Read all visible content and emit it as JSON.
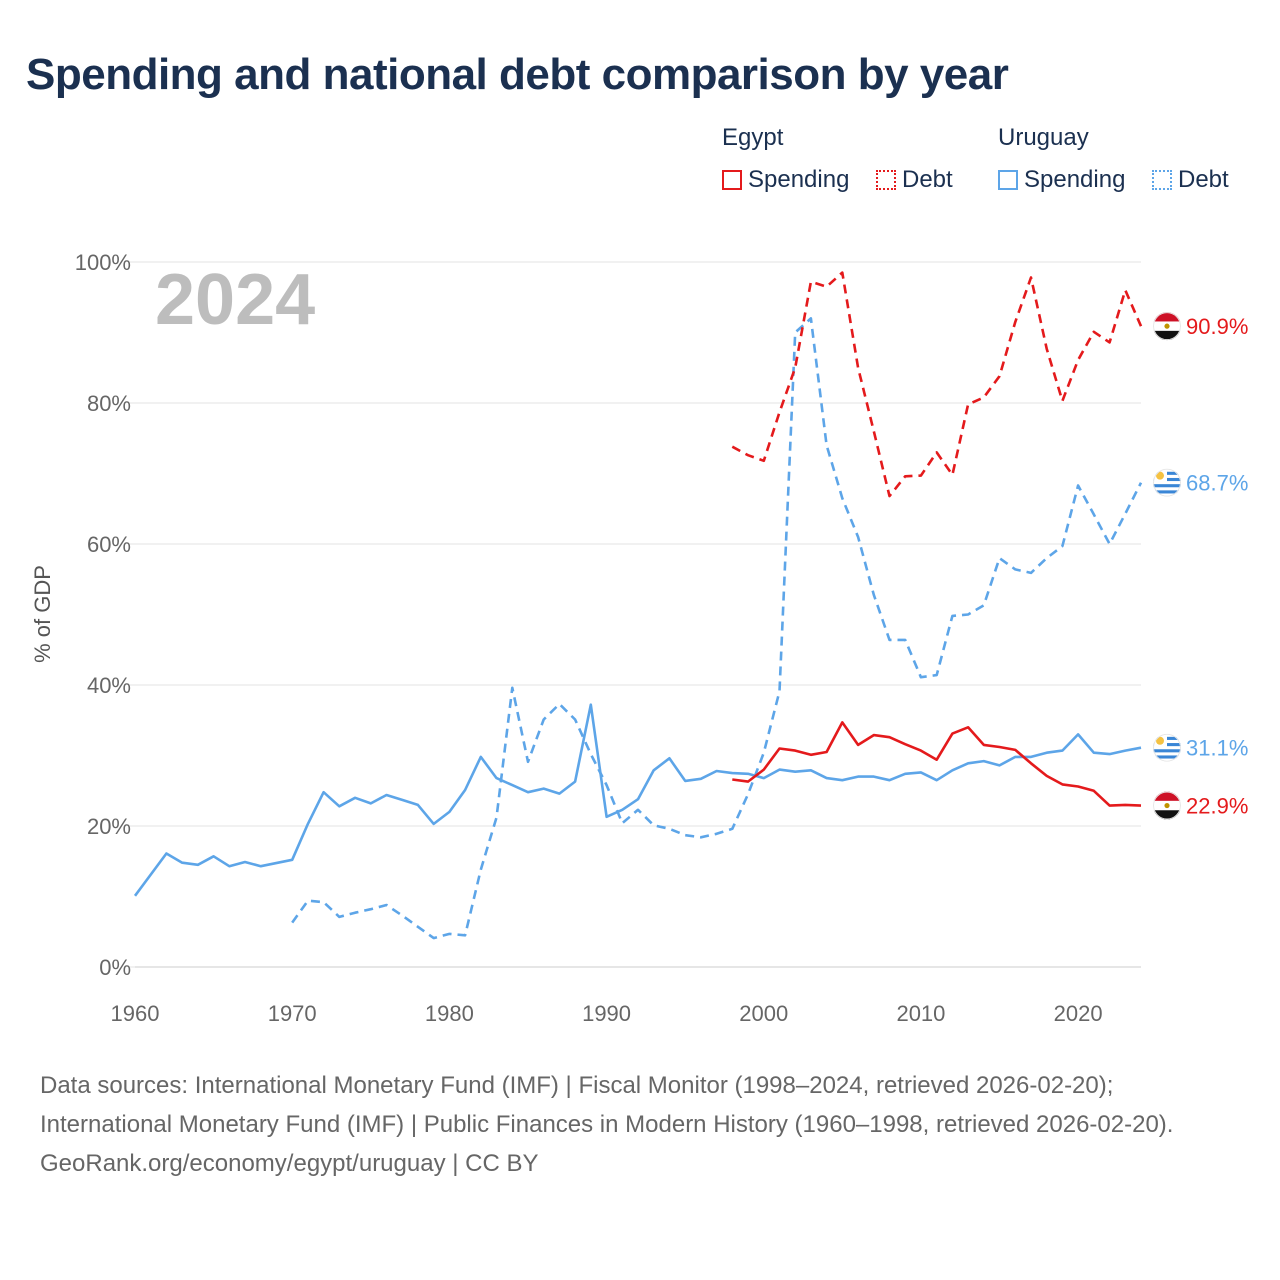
{
  "title": "Spending and national debt comparison by year",
  "legend": {
    "groups": [
      {
        "country": "Egypt",
        "color": "#e41a1c",
        "items": [
          {
            "label": "Spending",
            "style": "solid"
          },
          {
            "label": "Debt",
            "style": "dotted"
          }
        ]
      },
      {
        "country": "Uruguay",
        "color": "#5da5e8",
        "items": [
          {
            "label": "Spending",
            "style": "solid"
          },
          {
            "label": "Debt",
            "style": "dotted"
          }
        ]
      }
    ]
  },
  "footer": {
    "sources": "Data sources: International Monetary Fund (IMF) | Fiscal Monitor (1998–2024, retrieved 2026-02-20); International Monetary Fund (IMF) | Public Finances in Modern History (1960–1998, retrieved 2026-02-20).",
    "credit": "GeoRank.org/economy/egypt/uruguay | CC BY"
  },
  "chart_data": {
    "type": "line",
    "title": "Spending and national debt comparison by year",
    "year_label": "2024",
    "xlabel": "",
    "ylabel": "% of GDP",
    "xlim": [
      1960,
      2024
    ],
    "ylim": [
      0,
      100
    ],
    "x_ticks": [
      1960,
      1970,
      1980,
      1990,
      2000,
      2010,
      2020
    ],
    "y_ticks": [
      0,
      20,
      40,
      60,
      80,
      100
    ],
    "y_tick_labels": [
      "0%",
      "20%",
      "40%",
      "60%",
      "80%",
      "100%"
    ],
    "grid": true,
    "series": [
      {
        "name": "Uruguay Spending",
        "country": "Uruguay",
        "color": "#5da5e8",
        "dash": "solid",
        "end_label": "31.1%",
        "flag": "uruguay",
        "points": [
          [
            1960,
            10.1
          ],
          [
            1962,
            16.1
          ],
          [
            1963,
            14.8
          ],
          [
            1964,
            14.5
          ],
          [
            1965,
            15.7
          ],
          [
            1966,
            14.3
          ],
          [
            1967,
            14.9
          ],
          [
            1968,
            14.3
          ],
          [
            1970,
            15.2
          ],
          [
            1971,
            20.3
          ],
          [
            1972,
            24.8
          ],
          [
            1973,
            22.8
          ],
          [
            1974,
            24.0
          ],
          [
            1975,
            23.2
          ],
          [
            1976,
            24.4
          ],
          [
            1977,
            23.7
          ],
          [
            1978,
            23.0
          ],
          [
            1979,
            20.3
          ],
          [
            1980,
            22.0
          ],
          [
            1981,
            25.1
          ],
          [
            1982,
            29.8
          ],
          [
            1983,
            26.8
          ],
          [
            1984,
            25.8
          ],
          [
            1985,
            24.8
          ],
          [
            1986,
            25.3
          ],
          [
            1987,
            24.6
          ],
          [
            1988,
            26.3
          ],
          [
            1989,
            37.2
          ],
          [
            1990,
            21.3
          ],
          [
            1991,
            22.3
          ],
          [
            1992,
            23.8
          ],
          [
            1993,
            27.9
          ],
          [
            1994,
            29.6
          ],
          [
            1995,
            26.4
          ],
          [
            1996,
            26.7
          ],
          [
            1997,
            27.8
          ],
          [
            1998,
            27.5
          ],
          [
            1999,
            27.4
          ],
          [
            2000,
            26.8
          ],
          [
            2001,
            28.0
          ],
          [
            2002,
            27.7
          ],
          [
            2003,
            27.9
          ],
          [
            2004,
            26.8
          ],
          [
            2005,
            26.5
          ],
          [
            2006,
            27.0
          ],
          [
            2007,
            27.0
          ],
          [
            2008,
            26.5
          ],
          [
            2009,
            27.4
          ],
          [
            2010,
            27.6
          ],
          [
            2011,
            26.5
          ],
          [
            2012,
            27.9
          ],
          [
            2013,
            28.9
          ],
          [
            2014,
            29.2
          ],
          [
            2015,
            28.6
          ],
          [
            2016,
            29.8
          ],
          [
            2017,
            29.8
          ],
          [
            2018,
            30.4
          ],
          [
            2019,
            30.7
          ],
          [
            2020,
            33.0
          ],
          [
            2021,
            30.4
          ],
          [
            2022,
            30.2
          ],
          [
            2023,
            30.7
          ],
          [
            2024,
            31.1
          ]
        ]
      },
      {
        "name": "Uruguay Debt",
        "country": "Uruguay",
        "color": "#5da5e8",
        "dash": "dashed",
        "end_label": "68.7%",
        "flag": "uruguay",
        "points": [
          [
            1970,
            6.3
          ],
          [
            1971,
            9.4
          ],
          [
            1972,
            9.2
          ],
          [
            1973,
            7.1
          ],
          [
            1974,
            7.7
          ],
          [
            1975,
            8.2
          ],
          [
            1976,
            8.8
          ],
          [
            1977,
            7.3
          ],
          [
            1978,
            5.7
          ],
          [
            1979,
            4.1
          ],
          [
            1980,
            4.7
          ],
          [
            1981,
            4.5
          ],
          [
            1982,
            13.8
          ],
          [
            1983,
            21.2
          ],
          [
            1984,
            39.6
          ],
          [
            1985,
            29.1
          ],
          [
            1986,
            35.1
          ],
          [
            1987,
            37.3
          ],
          [
            1988,
            35.1
          ],
          [
            1989,
            30.2
          ],
          [
            1990,
            25.8
          ],
          [
            1991,
            20.4
          ],
          [
            1992,
            22.3
          ],
          [
            1993,
            20.1
          ],
          [
            1994,
            19.6
          ],
          [
            1995,
            18.7
          ],
          [
            1996,
            18.4
          ],
          [
            1997,
            18.9
          ],
          [
            1998,
            19.6
          ],
          [
            1999,
            24.5
          ],
          [
            2000,
            30.4
          ],
          [
            2001,
            39.1
          ],
          [
            2002,
            90.0
          ],
          [
            2003,
            92.0
          ],
          [
            2004,
            74.0
          ],
          [
            2005,
            66.5
          ],
          [
            2006,
            61.0
          ],
          [
            2007,
            52.8
          ],
          [
            2008,
            46.4
          ],
          [
            2009,
            46.4
          ],
          [
            2010,
            41.1
          ],
          [
            2011,
            41.4
          ],
          [
            2012,
            49.8
          ],
          [
            2013,
            50.0
          ],
          [
            2014,
            51.3
          ],
          [
            2015,
            58.0
          ],
          [
            2016,
            56.4
          ],
          [
            2017,
            55.9
          ],
          [
            2018,
            58.0
          ],
          [
            2019,
            59.7
          ],
          [
            2020,
            68.3
          ],
          [
            2021,
            64.2
          ],
          [
            2022,
            60.0
          ],
          [
            2023,
            64.3
          ],
          [
            2024,
            68.7
          ]
        ]
      },
      {
        "name": "Egypt Spending",
        "country": "Egypt",
        "color": "#e41a1c",
        "dash": "solid",
        "end_label": "22.9%",
        "flag": "egypt",
        "points": [
          [
            1998,
            26.6
          ],
          [
            1999,
            26.3
          ],
          [
            2000,
            28.0
          ],
          [
            2001,
            31.0
          ],
          [
            2002,
            30.7
          ],
          [
            2003,
            30.1
          ],
          [
            2004,
            30.5
          ],
          [
            2005,
            34.7
          ],
          [
            2006,
            31.5
          ],
          [
            2007,
            32.9
          ],
          [
            2008,
            32.6
          ],
          [
            2009,
            31.6
          ],
          [
            2010,
            30.7
          ],
          [
            2011,
            29.4
          ],
          [
            2012,
            33.1
          ],
          [
            2013,
            34.0
          ],
          [
            2014,
            31.5
          ],
          [
            2015,
            31.2
          ],
          [
            2016,
            30.8
          ],
          [
            2017,
            28.9
          ],
          [
            2018,
            27.1
          ],
          [
            2019,
            25.9
          ],
          [
            2020,
            25.6
          ],
          [
            2021,
            25.0
          ],
          [
            2022,
            22.9
          ],
          [
            2023,
            23.0
          ],
          [
            2024,
            22.9
          ]
        ]
      },
      {
        "name": "Egypt Debt",
        "country": "Egypt",
        "color": "#e41a1c",
        "dash": "dashed",
        "end_label": "90.9%",
        "flag": "egypt",
        "points": [
          [
            1998,
            73.8
          ],
          [
            1999,
            72.6
          ],
          [
            2000,
            71.8
          ],
          [
            2001,
            78.7
          ],
          [
            2002,
            85.0
          ],
          [
            2003,
            97.2
          ],
          [
            2004,
            96.5
          ],
          [
            2005,
            98.5
          ],
          [
            2006,
            85.0
          ],
          [
            2007,
            76.0
          ],
          [
            2008,
            66.8
          ],
          [
            2009,
            69.6
          ],
          [
            2010,
            69.7
          ],
          [
            2011,
            73.0
          ],
          [
            2012,
            69.8
          ],
          [
            2013,
            79.8
          ],
          [
            2014,
            80.8
          ],
          [
            2015,
            83.8
          ],
          [
            2016,
            91.5
          ],
          [
            2017,
            97.8
          ],
          [
            2018,
            87.7
          ],
          [
            2019,
            80.3
          ],
          [
            2020,
            86.1
          ],
          [
            2021,
            90.1
          ],
          [
            2022,
            88.6
          ],
          [
            2023,
            96.0
          ],
          [
            2024,
            90.9
          ]
        ]
      }
    ]
  }
}
